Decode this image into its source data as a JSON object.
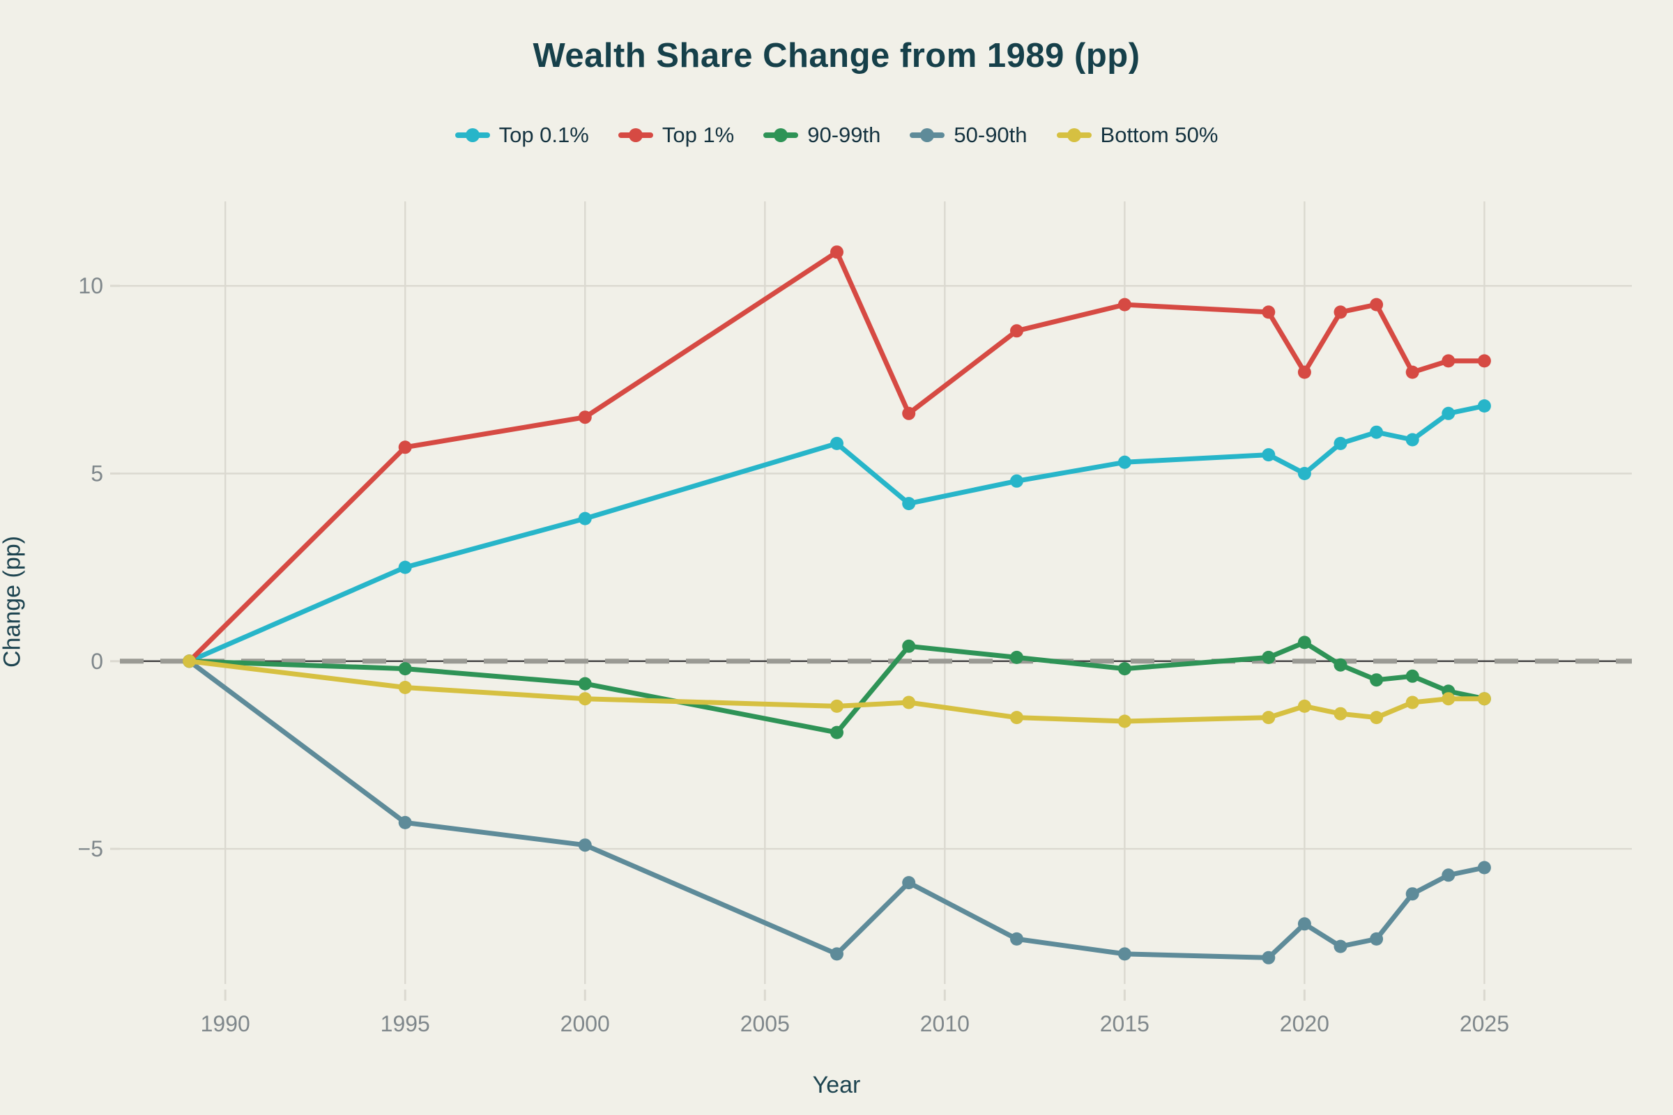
{
  "page": {
    "background": "#f1f0e8"
  },
  "chart_data": {
    "type": "line",
    "title": "Wealth Share Change from 1989 (pp)",
    "xlabel": "Year",
    "ylabel": "Change (pp)",
    "x": [
      1989,
      1995,
      2000,
      2007,
      2009,
      2012,
      2015,
      2019,
      2020,
      2021,
      2022,
      2023,
      2024,
      2025
    ],
    "series": [
      {
        "name": "Top 0.1%",
        "color": "#27b5c9",
        "values": [
          0,
          2.5,
          3.8,
          5.8,
          4.2,
          4.8,
          5.3,
          5.5,
          5.0,
          5.8,
          6.1,
          5.9,
          6.6,
          6.8
        ]
      },
      {
        "name": "Top 1%",
        "color": "#d64a43",
        "values": [
          0,
          5.7,
          6.5,
          10.9,
          6.6,
          8.8,
          9.5,
          9.3,
          7.7,
          9.3,
          9.5,
          7.7,
          8.0,
          8.0
        ]
      },
      {
        "name": "90-99th",
        "color": "#2e9356",
        "values": [
          0,
          -0.2,
          -0.6,
          -1.9,
          0.4,
          0.1,
          -0.2,
          0.1,
          0.5,
          -0.1,
          -0.5,
          -0.4,
          -0.8,
          -1.0
        ]
      },
      {
        "name": "50-90th",
        "color": "#5e8b99",
        "values": [
          0,
          -4.3,
          -4.9,
          -7.8,
          -5.9,
          -7.4,
          -7.8,
          -7.9,
          -7.0,
          -7.6,
          -7.4,
          -6.2,
          -5.7,
          -5.5
        ]
      },
      {
        "name": "Bottom 50%",
        "color": "#d6c041",
        "values": [
          0,
          -0.7,
          -1.0,
          -1.2,
          -1.1,
          -1.5,
          -1.6,
          -1.5,
          -1.2,
          -1.4,
          -1.5,
          -1.1,
          -1.0,
          -1.0
        ]
      }
    ],
    "x_ticks": [
      1990,
      1995,
      2000,
      2005,
      2010,
      2015,
      2020,
      2025
    ],
    "x_tick_labels": [
      "1990",
      "1995",
      "2000",
      "2005",
      "2010",
      "2015",
      "2020",
      "2025"
    ],
    "y_ticks": [
      -5,
      0,
      5,
      10
    ],
    "y_tick_labels": [
      "−5",
      "0",
      "5",
      "10"
    ],
    "xlim": [
      1987.07,
      2029.1
    ],
    "ylim": [
      -8.6,
      12.25
    ],
    "grid": true,
    "zero_line": true,
    "legend_position": "top",
    "marker": "circle"
  },
  "style": {
    "grid_color": "#dbd9d0",
    "tick_label_color": "#7f878b",
    "zero_line_solid_color": "#454545",
    "zero_line_dash_color": "#9a9a94",
    "title_color": "#16404a",
    "legend_text_color": "#14323f",
    "axis_label_color": "#1d4450"
  }
}
